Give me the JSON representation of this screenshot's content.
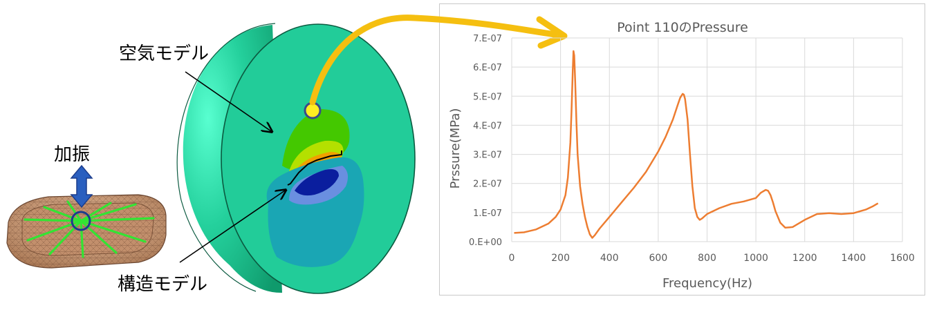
{
  "labels": {
    "air_model": "空気モデル",
    "structure_model": "構造モデル",
    "excitation": "加振"
  },
  "colors": {
    "shell_light": "#3ff0c0",
    "shell_dark": "#14a878",
    "cut_face": "#22cc99",
    "green_zone": "#44c800",
    "red_zone": "#e02010",
    "blue_zone": "#0a1e9e",
    "teal_blob": "#1aa6b4",
    "arrow_yellow": "#f5bf10",
    "series_orange": "#ed7d31",
    "tray_tan": "#c89a78",
    "ribs_green": "#33e433"
  },
  "chart_data": {
    "type": "line",
    "title": "Point 110のPressure",
    "xlabel": "Frequency(Hz)",
    "ylabel": "Prssure(MPa)",
    "xlim": [
      0,
      1600
    ],
    "ylim": [
      0,
      7e-07
    ],
    "x_ticks": [
      "0",
      "200",
      "400",
      "600",
      "800",
      "1000",
      "1200",
      "1400",
      "1600"
    ],
    "y_ticks": [
      "0.E+00",
      "1.E-07",
      "2.E-07",
      "3.E-07",
      "4.E-07",
      "5.E-07",
      "6.E-07",
      "7.E-07"
    ],
    "grid": true,
    "series": [
      {
        "name": "Point 110",
        "x": [
          10,
          50,
          100,
          150,
          180,
          200,
          220,
          230,
          240,
          245,
          250,
          253,
          256,
          260,
          265,
          270,
          280,
          290,
          300,
          310,
          320,
          330,
          340,
          360,
          400,
          450,
          500,
          550,
          600,
          630,
          660,
          680,
          690,
          700,
          705,
          710,
          720,
          730,
          740,
          750,
          760,
          770,
          780,
          800,
          850,
          900,
          950,
          1000,
          1020,
          1040,
          1050,
          1060,
          1070,
          1080,
          1100,
          1120,
          1150,
          1200,
          1250,
          1300,
          1350,
          1400,
          1450,
          1480,
          1500
        ],
        "y": [
          3e-08,
          3.2e-08,
          4.2e-08,
          6.2e-08,
          8.5e-08,
          1.1e-07,
          1.6e-07,
          2.2e-07,
          3.4e-07,
          4.5e-07,
          5.9e-07,
          6.55e-07,
          6.4e-07,
          5.5e-07,
          4.1e-07,
          3e-07,
          1.9e-07,
          1.3e-07,
          8.5e-08,
          5e-08,
          2.5e-08,
          1.3e-08,
          2.2e-08,
          4.5e-08,
          8.5e-08,
          1.35e-07,
          1.85e-07,
          2.4e-07,
          3.1e-07,
          3.6e-07,
          4.2e-07,
          4.7e-07,
          4.95e-07,
          5.08e-07,
          5.05e-07,
          4.9e-07,
          4.2e-07,
          3e-07,
          1.9e-07,
          1.15e-07,
          8.5e-08,
          7.5e-08,
          8e-08,
          9.5e-08,
          1.15e-07,
          1.3e-07,
          1.38e-07,
          1.5e-07,
          1.68e-07,
          1.78e-07,
          1.75e-07,
          1.6e-07,
          1.35e-07,
          1.05e-07,
          6.5e-08,
          4.8e-08,
          5e-08,
          7.5e-08,
          9.5e-08,
          9.8e-08,
          9.5e-08,
          9.8e-08,
          1.1e-07,
          1.22e-07,
          1.32e-07
        ]
      }
    ]
  }
}
